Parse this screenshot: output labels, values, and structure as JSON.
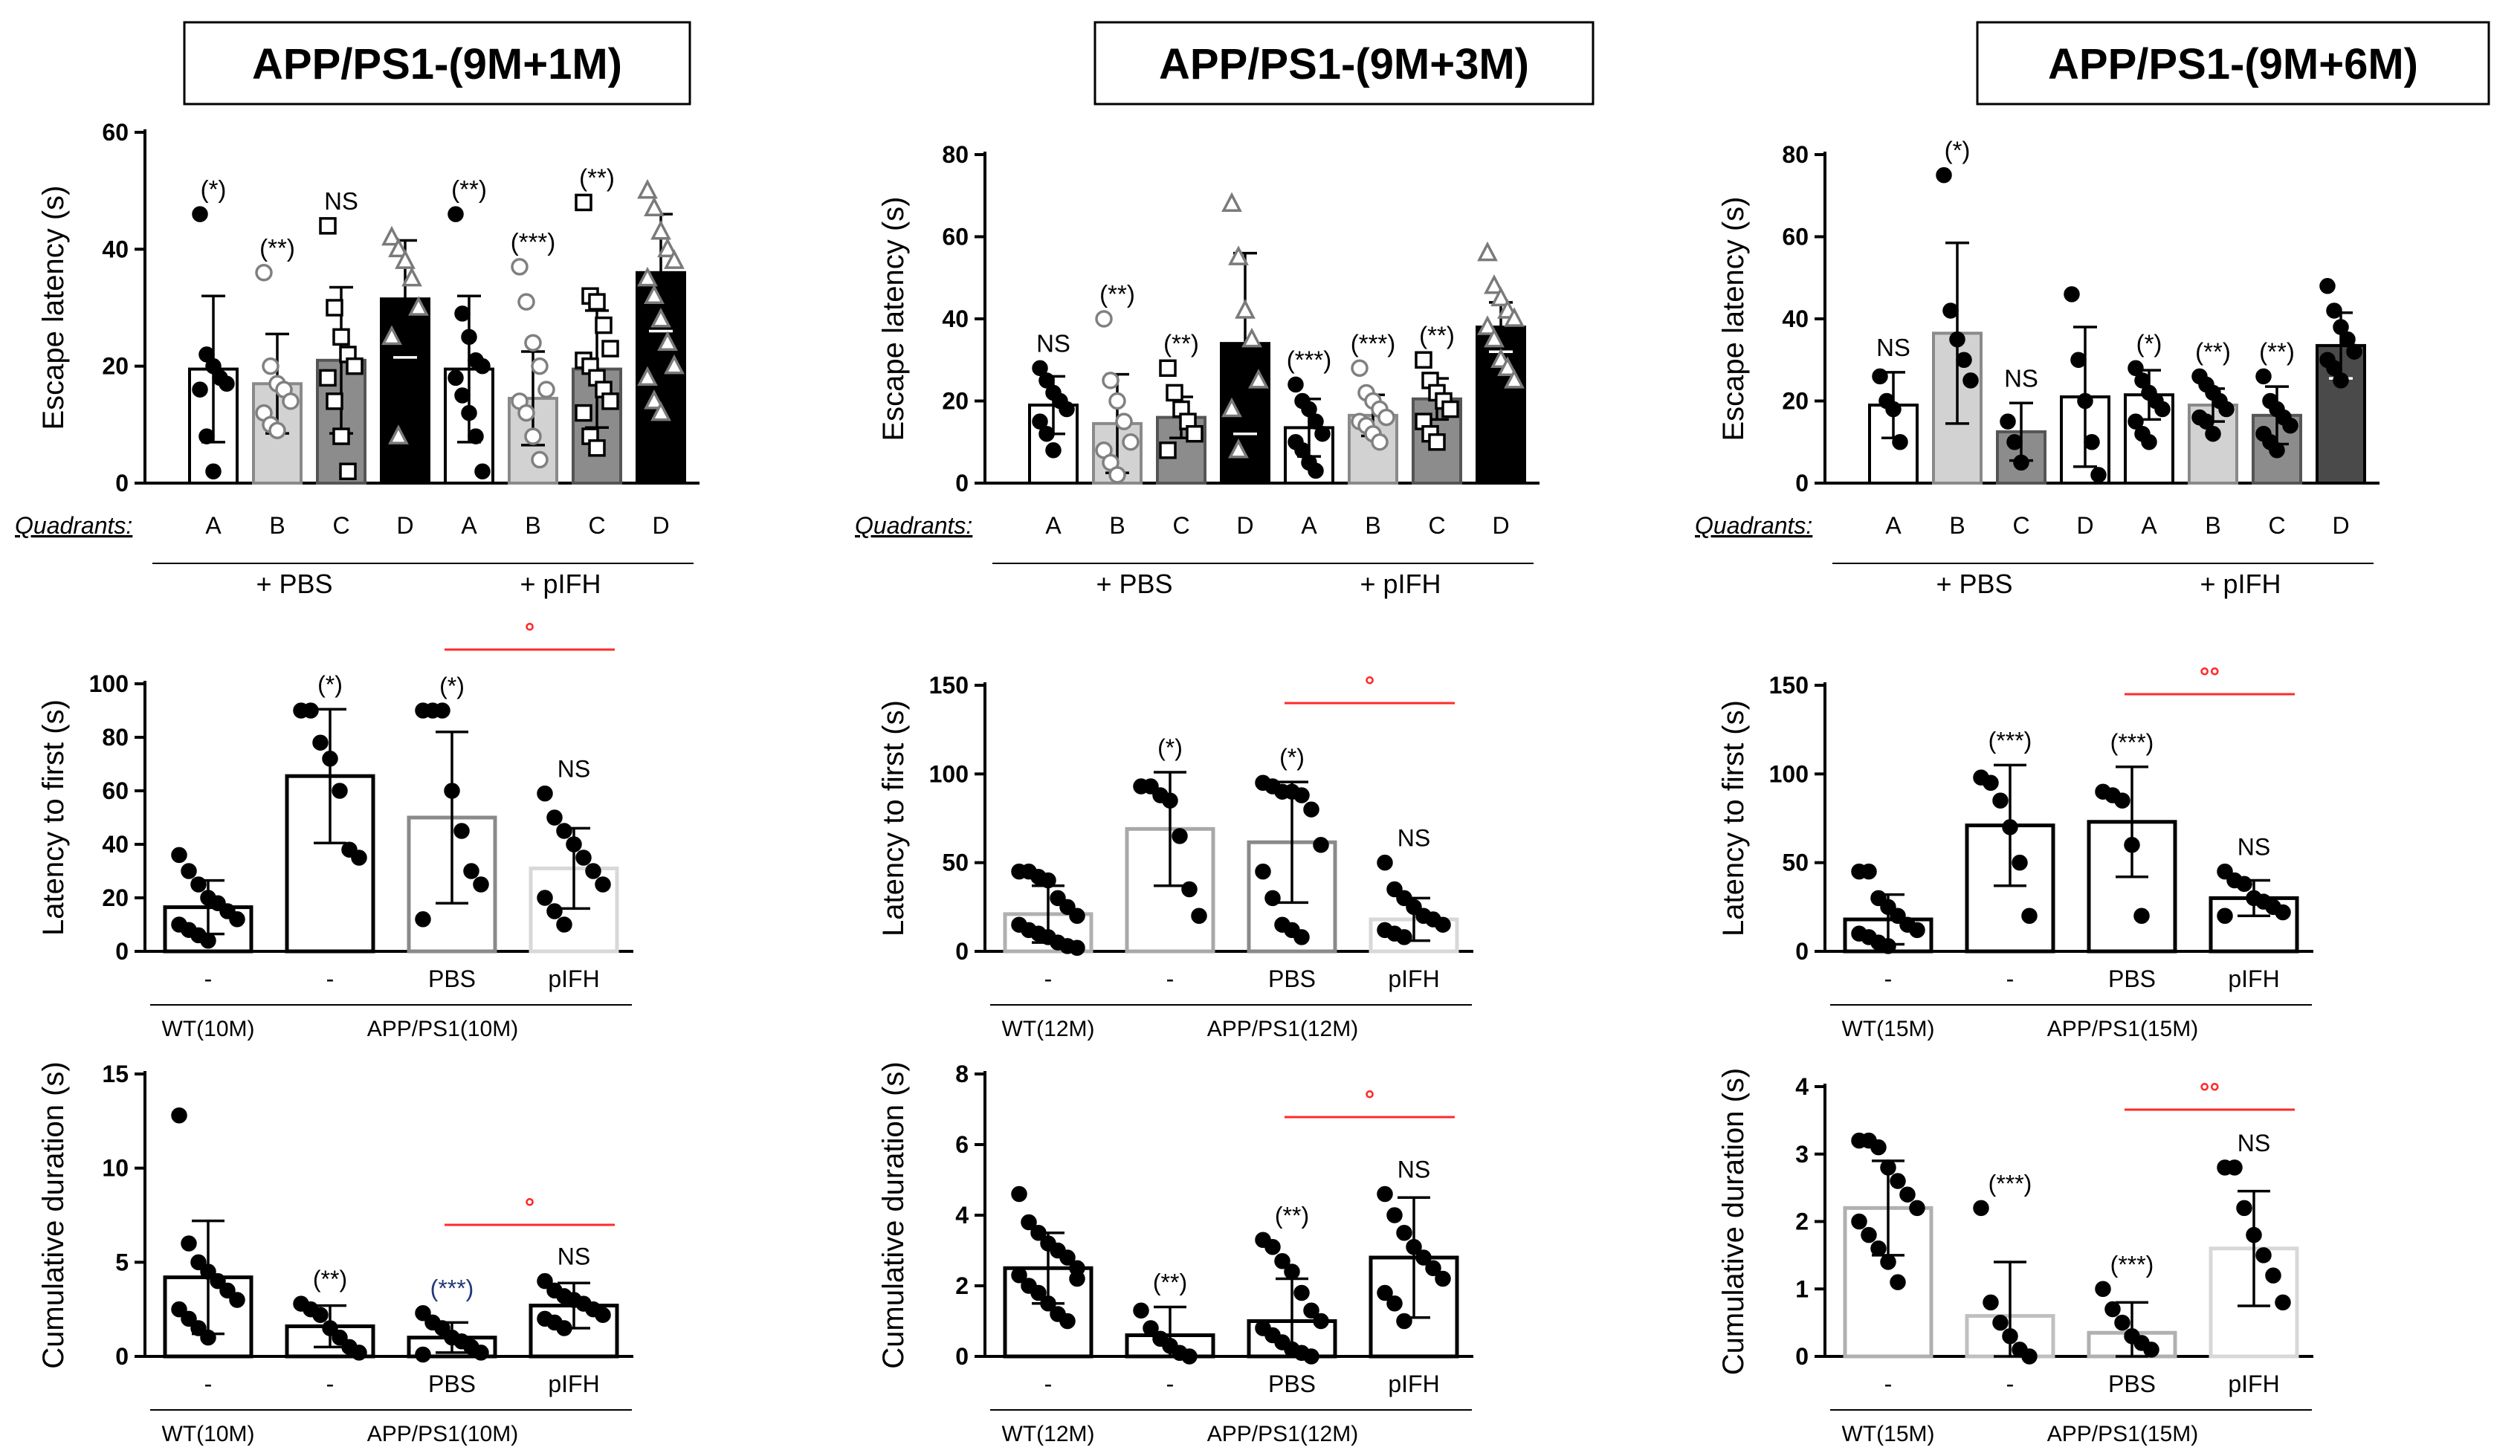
{
  "figure": {
    "columns": [
      {
        "title": "APP/PS1-(9M+1M)",
        "row1": {
          "type": "bar",
          "ylabel": "Escape latency (s)",
          "ylim": [
            0,
            60
          ],
          "yticks": [
            0,
            20,
            40,
            60
          ],
          "quadrant_label": "Quadrants:",
          "categories": [
            "A",
            "B",
            "C",
            "D",
            "A",
            "B",
            "C",
            "D"
          ],
          "groups": [
            "+ PBS",
            "+ pIFH"
          ],
          "values": [
            19.5,
            17,
            21,
            31.5,
            19.5,
            14.5,
            19.5,
            36
          ],
          "err": [
            12.5,
            8.5,
            12.5,
            10,
            12.5,
            8,
            10,
            10
          ],
          "sig": [
            "(*)",
            "(**)",
            "NS",
            "",
            "(**)",
            "(***)",
            "(**)",
            ""
          ],
          "points": [
            [
              46,
              22,
              20,
              18,
              17,
              16,
              8,
              2
            ],
            [
              36,
              20,
              17,
              16,
              14,
              12,
              10,
              9
            ],
            [
              44,
              30,
              25,
              22,
              20,
              18,
              14,
              8,
              2
            ],
            [
              42,
              40,
              38,
              35,
              30,
              25,
              8
            ],
            [
              46,
              29,
              25,
              21,
              20,
              18,
              15,
              12,
              8,
              2
            ],
            [
              37,
              31,
              24,
              20,
              16,
              14,
              12,
              8,
              4
            ],
            [
              48,
              32,
              31,
              27,
              23,
              21,
              20,
              18,
              16,
              14,
              12,
              8,
              6
            ],
            [
              50,
              47,
              43,
              40,
              38,
              35,
              32,
              28,
              24,
              20,
              18,
              14,
              12
            ]
          ]
        },
        "row2": {
          "type": "bar",
          "ylabel": "Latency to first (s)",
          "ylim": [
            0,
            100
          ],
          "yticks": [
            0,
            20,
            40,
            60,
            80,
            100
          ],
          "categories": [
            "-",
            "-",
            "PBS",
            "pIFH"
          ],
          "group_labels": [
            "WT(10M)",
            "APP/PS1(10M)"
          ],
          "values": [
            16.5,
            65.5,
            50,
            31
          ],
          "err": [
            10,
            25,
            32,
            15
          ],
          "sig": [
            "",
            "(*)",
            "(*)",
            "NS"
          ],
          "bracket_sig": "°",
          "points": [
            [
              36,
              30,
              25,
              20,
              18,
              15,
              12,
              10,
              8,
              6,
              4
            ],
            [
              90,
              90,
              78,
              72,
              60,
              38,
              35
            ],
            [
              90,
              90,
              90,
              60,
              45,
              30,
              25,
              12
            ],
            [
              59,
              50,
              45,
              40,
              35,
              30,
              25,
              20,
              15,
              10
            ]
          ]
        },
        "row3": {
          "type": "bar",
          "ylabel": "Cumulative duration (s)",
          "ylim": [
            0,
            15
          ],
          "yticks": [
            0,
            5,
            10,
            15
          ],
          "categories": [
            "-",
            "-",
            "PBS",
            "pIFH"
          ],
          "group_labels": [
            "WT(10M)",
            "APP/PS1(10M)"
          ],
          "values": [
            4.2,
            1.6,
            1,
            2.7
          ],
          "err": [
            3,
            1.1,
            0.8,
            1.2
          ],
          "sig": [
            "",
            "(**)",
            "(***)",
            "NS"
          ],
          "bracket_sig": "°",
          "points": [
            [
              12.8,
              6,
              5,
              4.5,
              4,
              3.5,
              3,
              2.5,
              2,
              1.5,
              1
            ],
            [
              2.8,
              2.5,
              2.2,
              1.5,
              1,
              0.5,
              0.2
            ],
            [
              2.3,
              1.8,
              1.5,
              1,
              0.8,
              0.5,
              0.2,
              0.1
            ],
            [
              4,
              3.5,
              3.2,
              3,
              2.8,
              2.5,
              2.2,
              2,
              1.8,
              1.5
            ]
          ]
        }
      },
      {
        "title": "APP/PS1-(9M+3M)",
        "row1": {
          "type": "bar",
          "ylabel": "Escape latency (s)",
          "ylim": [
            0,
            80
          ],
          "yticks": [
            0,
            20,
            40,
            60,
            80
          ],
          "quadrant_label": "Quadrants:",
          "categories": [
            "A",
            "B",
            "C",
            "D",
            "A",
            "B",
            "C",
            "D"
          ],
          "groups": [
            "+ PBS",
            "+ pIFH"
          ],
          "values": [
            19,
            14.5,
            16,
            34,
            13.5,
            16.5,
            20.5,
            38
          ],
          "err": [
            7,
            12,
            5,
            22,
            7,
            5,
            5,
            6
          ],
          "sig": [
            "NS",
            "(**)",
            "(**)",
            "",
            "(***)",
            "(***)",
            "(**)",
            ""
          ],
          "points": [
            [
              28,
              25,
              22,
              20,
              18,
              15,
              12,
              8
            ],
            [
              40,
              25,
              20,
              15,
              10,
              8,
              5,
              2
            ],
            [
              28,
              22,
              18,
              15,
              12,
              8
            ],
            [
              68,
              55,
              42,
              35,
              25,
              18,
              8
            ],
            [
              24,
              20,
              18,
              15,
              12,
              10,
              8,
              5,
              3
            ],
            [
              28,
              22,
              20,
              18,
              16,
              15,
              14,
              12,
              10
            ],
            [
              30,
              25,
              22,
              20,
              18,
              15,
              12,
              10
            ],
            [
              56,
              48,
              45,
              42,
              40,
              38,
              35,
              30,
              28,
              25
            ]
          ]
        },
        "row2": {
          "type": "bar",
          "ylabel": "Latency to first (s)",
          "ylim": [
            0,
            150
          ],
          "yticks": [
            0,
            50,
            100,
            150
          ],
          "categories": [
            "-",
            "-",
            "PBS",
            "pIFH"
          ],
          "group_labels": [
            "WT(12M)",
            "APP/PS1(12M)"
          ],
          "values": [
            21,
            69,
            61.5,
            18
          ],
          "err": [
            16,
            32,
            34,
            12
          ],
          "sig": [
            "",
            "(*)",
            "(*)",
            "NS"
          ],
          "bracket_sig": "°",
          "points": [
            [
              45,
              45,
              42,
              40,
              30,
              25,
              20,
              15,
              12,
              10,
              8,
              5,
              3,
              2
            ],
            [
              93,
              93,
              88,
              85,
              65,
              35,
              20
            ],
            [
              95,
              93,
              90,
              90,
              88,
              80,
              60,
              45,
              30,
              15,
              12,
              8
            ],
            [
              50,
              35,
              30,
              25,
              20,
              18,
              15,
              12,
              10,
              8
            ]
          ]
        },
        "row3": {
          "type": "bar",
          "ylabel": "Cumulative duration (s)",
          "ylim": [
            0,
            8
          ],
          "yticks": [
            0,
            2,
            4,
            6,
            8
          ],
          "categories": [
            "-",
            "-",
            "PBS",
            "pIFH"
          ],
          "group_labels": [
            "WT(12M)",
            "APP/PS1(12M)"
          ],
          "values": [
            2.5,
            0.6,
            1,
            2.8
          ],
          "err": [
            1,
            0.8,
            1.2,
            1.7
          ],
          "sig": [
            "",
            "(**)",
            "(**)",
            "NS"
          ],
          "bracket_sig": "°",
          "points": [
            [
              4.6,
              3.8,
              3.5,
              3.2,
              3,
              2.8,
              2.5,
              2.3,
              2,
              1.8,
              1.5,
              1.2,
              1,
              2.2
            ],
            [
              1.3,
              0.8,
              0.5,
              0.3,
              0.1,
              0
            ],
            [
              3.3,
              3.1,
              2.7,
              2.4,
              1.8,
              1.3,
              1,
              0.8,
              0.6,
              0.4,
              0.2,
              0.1,
              0
            ],
            [
              4.6,
              4,
              3.5,
              3.1,
              2.8,
              2.5,
              2.2,
              1.8,
              1.5,
              1
            ]
          ]
        }
      },
      {
        "title": "APP/PS1-(9M+6M)",
        "row1": {
          "type": "bar",
          "ylabel": "Escape latency (s)",
          "ylim": [
            0,
            80
          ],
          "yticks": [
            0,
            20,
            40,
            60,
            80
          ],
          "quadrant_label": "Quadrants:",
          "categories": [
            "A",
            "B",
            "C",
            "D",
            "A",
            "B",
            "C",
            "D"
          ],
          "groups": [
            "+ PBS",
            "+ pIFH"
          ],
          "values": [
            19,
            36.5,
            12.5,
            21,
            21.5,
            19,
            16.5,
            33.5
          ],
          "err": [
            8,
            22,
            7,
            17,
            6,
            4,
            7,
            8
          ],
          "sig": [
            "NS",
            "(*)",
            "NS",
            "",
            "(*)",
            "(**)",
            "(**)",
            ""
          ],
          "points": [
            [
              26,
              20,
              18,
              10
            ],
            [
              75,
              42,
              35,
              30,
              25
            ],
            [
              15,
              10,
              5
            ],
            [
              46,
              30,
              20,
              10,
              2
            ],
            [
              28,
              25,
              22,
              20,
              18,
              15,
              12,
              10
            ],
            [
              26,
              24,
              22,
              20,
              18,
              16,
              15,
              12
            ],
            [
              26,
              20,
              18,
              16,
              14,
              12,
              10,
              8
            ],
            [
              48,
              42,
              38,
              35,
              32,
              30,
              28,
              25
            ]
          ]
        },
        "row2": {
          "type": "bar",
          "ylabel": "Latency to first (s)",
          "ylim": [
            0,
            150
          ],
          "yticks": [
            0,
            50,
            100,
            150
          ],
          "categories": [
            "-",
            "-",
            "PBS",
            "pIFH"
          ],
          "group_labels": [
            "WT(15M)",
            "APP/PS1(15M)"
          ],
          "values": [
            18,
            71,
            73,
            30
          ],
          "err": [
            14,
            34,
            31,
            10
          ],
          "sig": [
            "",
            "(***)",
            "(***)",
            "NS"
          ],
          "bracket_sig": "°°",
          "points": [
            [
              45,
              45,
              30,
              25,
              20,
              15,
              12,
              10,
              8,
              5,
              3
            ],
            [
              98,
              95,
              85,
              70,
              50,
              20
            ],
            [
              90,
              88,
              85,
              60,
              20
            ],
            [
              45,
              40,
              38,
              30,
              28,
              25,
              22,
              20
            ]
          ]
        },
        "row3": {
          "type": "bar",
          "ylabel": "Cumulative duration (s)",
          "ylim": [
            0,
            4
          ],
          "yticks": [
            0,
            1,
            2,
            3,
            4
          ],
          "categories": [
            "-",
            "-",
            "PBS",
            "pIFH"
          ],
          "group_labels": [
            "WT(15M)",
            "APP/PS1(15M)"
          ],
          "values": [
            2.2,
            0.6,
            0.35,
            1.6
          ],
          "err": [
            0.7,
            0.8,
            0.45,
            0.85
          ],
          "sig": [
            "",
            "(***)",
            "(***)",
            "NS"
          ],
          "bracket_sig": "°°",
          "points": [
            [
              3.2,
              3.2,
              3.1,
              2.8,
              2.6,
              2.4,
              2.2,
              2,
              1.8,
              1.6,
              1.4,
              1.1
            ],
            [
              2.2,
              0.8,
              0.5,
              0.3,
              0.1,
              0
            ],
            [
              1.0,
              0.7,
              0.5,
              0.3,
              0.2,
              0.1
            ],
            [
              2.8,
              2.8,
              2.2,
              1.8,
              1.5,
              1.2,
              0.8
            ]
          ]
        }
      }
    ]
  },
  "colors": {
    "ink": "#000000",
    "sig_red": "#ff2a2a",
    "sig_navy": "#23387a",
    "row1_fill": [
      "#ffffff",
      "#d2d2d2",
      "#8c8c8c",
      "#000000",
      "#ffffff",
      "#d2d2d2",
      "#8c8c8c",
      "#000000"
    ],
    "row1_fill_col3": [
      "#ffffff",
      "#d2d2d2",
      "#8c8c8c",
      "#ffffff",
      "#ffffff",
      "#d2d2d2",
      "#8c8c8c",
      "#4a4a4a"
    ]
  }
}
